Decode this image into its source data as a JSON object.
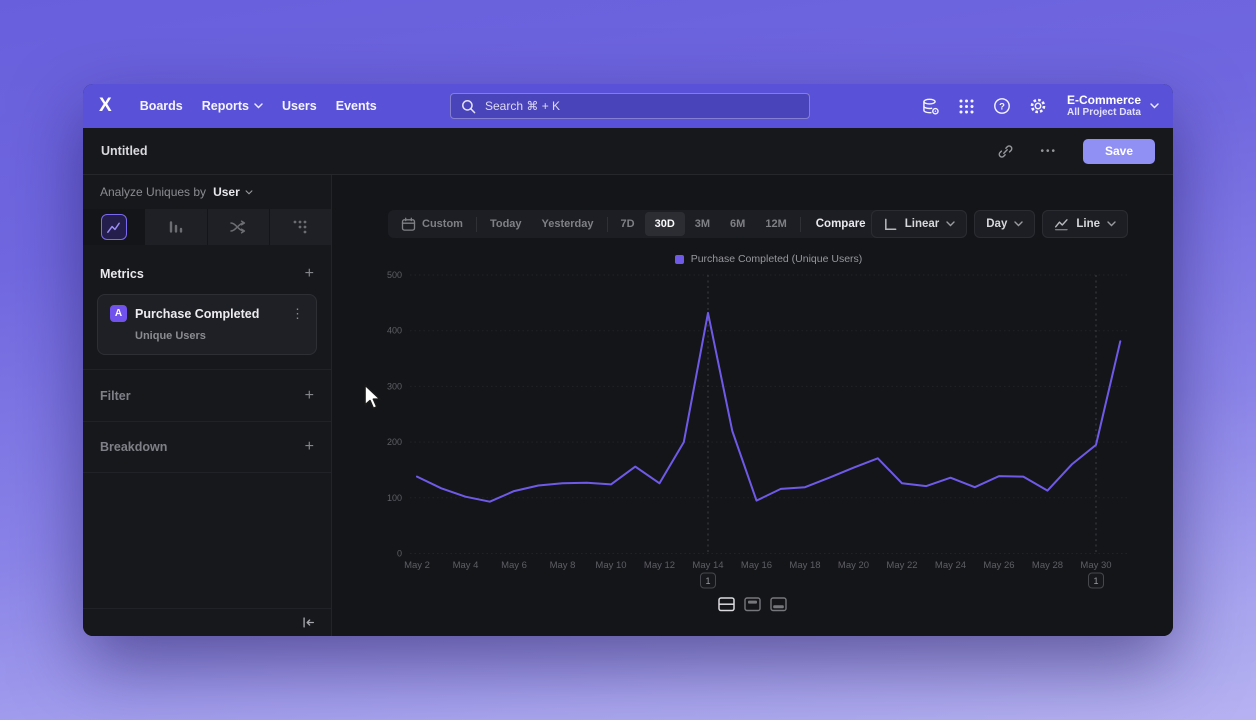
{
  "nav": {
    "logo_text": "X",
    "items": [
      {
        "label": "Boards",
        "chevron": false
      },
      {
        "label": "Reports",
        "chevron": true
      },
      {
        "label": "Users",
        "chevron": false
      },
      {
        "label": "Events",
        "chevron": false
      }
    ],
    "search_placeholder": "Search  ⌘ + K",
    "project": {
      "name": "E-Commerce",
      "subtitle": "All Project Data"
    }
  },
  "header": {
    "title": "Untitled",
    "more_label": "•••",
    "save_label": "Save"
  },
  "icons": {
    "kebab": "⋮",
    "plus": "+"
  },
  "sidebar": {
    "analyze_prefix": "Analyze Uniques by",
    "analyze_value": "User",
    "tabs": [
      {
        "name": "insights",
        "selected": true
      },
      {
        "name": "funnels",
        "selected": false
      },
      {
        "name": "flows",
        "selected": false
      },
      {
        "name": "retention",
        "selected": false
      }
    ],
    "metrics_title": "Metrics",
    "metric_card": {
      "badge": "A",
      "title": "Purchase Completed",
      "subtitle": "Unique Users"
    },
    "filter_title": "Filter",
    "breakdown_title": "Breakdown"
  },
  "toolbar": {
    "ranges": [
      "Custom",
      "Today",
      "Yesterday",
      "7D",
      "30D",
      "3M",
      "6M",
      "12M"
    ],
    "active_range": "30D",
    "compare_label": "Compare",
    "scale_label": "Linear",
    "interval_label": "Day",
    "chart_type_label": "Line"
  },
  "chart_data": {
    "type": "line",
    "title": "",
    "legend": [
      "Purchase Completed (Unique Users)"
    ],
    "legend_position": "top-center",
    "series_color": "#6F5AE8",
    "grid": true,
    "x": [
      "May 2",
      "May 3",
      "May 4",
      "May 5",
      "May 6",
      "May 7",
      "May 8",
      "May 9",
      "May 10",
      "May 11",
      "May 12",
      "May 13",
      "May 14",
      "May 15",
      "May 16",
      "May 17",
      "May 18",
      "May 19",
      "May 20",
      "May 21",
      "May 22",
      "May 23",
      "May 24",
      "May 25",
      "May 26",
      "May 27",
      "May 28",
      "May 29",
      "May 30",
      "May 31"
    ],
    "x_tick_every": 2,
    "values": [
      138,
      117,
      102,
      93,
      112,
      122,
      126,
      127,
      124,
      156,
      126,
      200,
      432,
      220,
      95,
      116,
      119,
      136,
      154,
      171,
      126,
      121,
      136,
      119,
      139,
      138,
      113,
      160,
      195,
      381
    ],
    "ylim": [
      0,
      500
    ],
    "yticks": [
      0,
      100,
      200,
      300,
      400,
      500
    ],
    "annotations": [
      {
        "x": "May 14",
        "label": "1"
      },
      {
        "x": "May 30",
        "label": "1"
      }
    ]
  }
}
